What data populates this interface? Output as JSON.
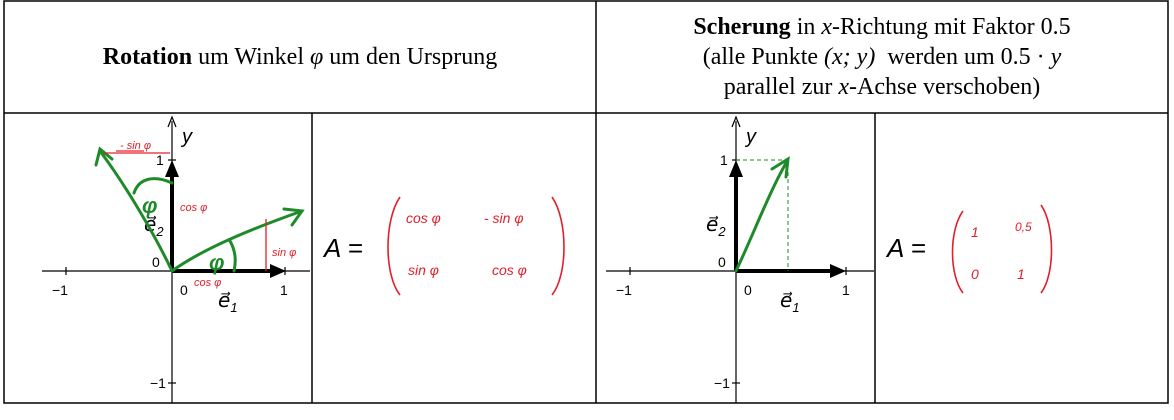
{
  "header": {
    "rotation": {
      "bold": "Rotation",
      "pre": " um Winkel ",
      "symbol": "φ",
      "post": " um den Ursprung"
    },
    "shear": {
      "bold": "Scherung",
      "line1_pre": " in ",
      "line1_var": "x",
      "line1_post": "-Richtung mit Faktor 0.5",
      "line2_pre": "(alle Punkte ",
      "line2_math": "(x; y)",
      "line2_mid": "  werden um 0.5 · ",
      "line2_var": "y",
      "line3_pre": "parallel zur ",
      "line3_var": "x",
      "line3_post": "-Achse verschoben)"
    }
  },
  "graph": {
    "y_label": "y",
    "e1": "e⃗",
    "e1_sub": "1",
    "e2": "e⃗",
    "e2_sub": "2",
    "tick_neg1": "−1",
    "tick_0": "0",
    "tick_1": "1"
  },
  "rotation_notes": {
    "neg_sin": "- sin φ",
    "cos_v": "cos φ",
    "sin_h": "sin φ",
    "cos_h": "cos φ",
    "angle": "φ"
  },
  "shear_notes": {},
  "matrix_rotation": {
    "lhs": "A =",
    "a11": "cos φ",
    "a12": "- sin φ",
    "a21": "sin φ",
    "a22": "cos φ"
  },
  "matrix_shear": {
    "lhs": "A =",
    "a11": "1",
    "a12": "0,5",
    "a21": "0",
    "a22": "1"
  },
  "colors": {
    "ink_red": "#e0202a",
    "ink_green": "#1e8a2a",
    "axis": "#000000",
    "grid": "#000000"
  }
}
